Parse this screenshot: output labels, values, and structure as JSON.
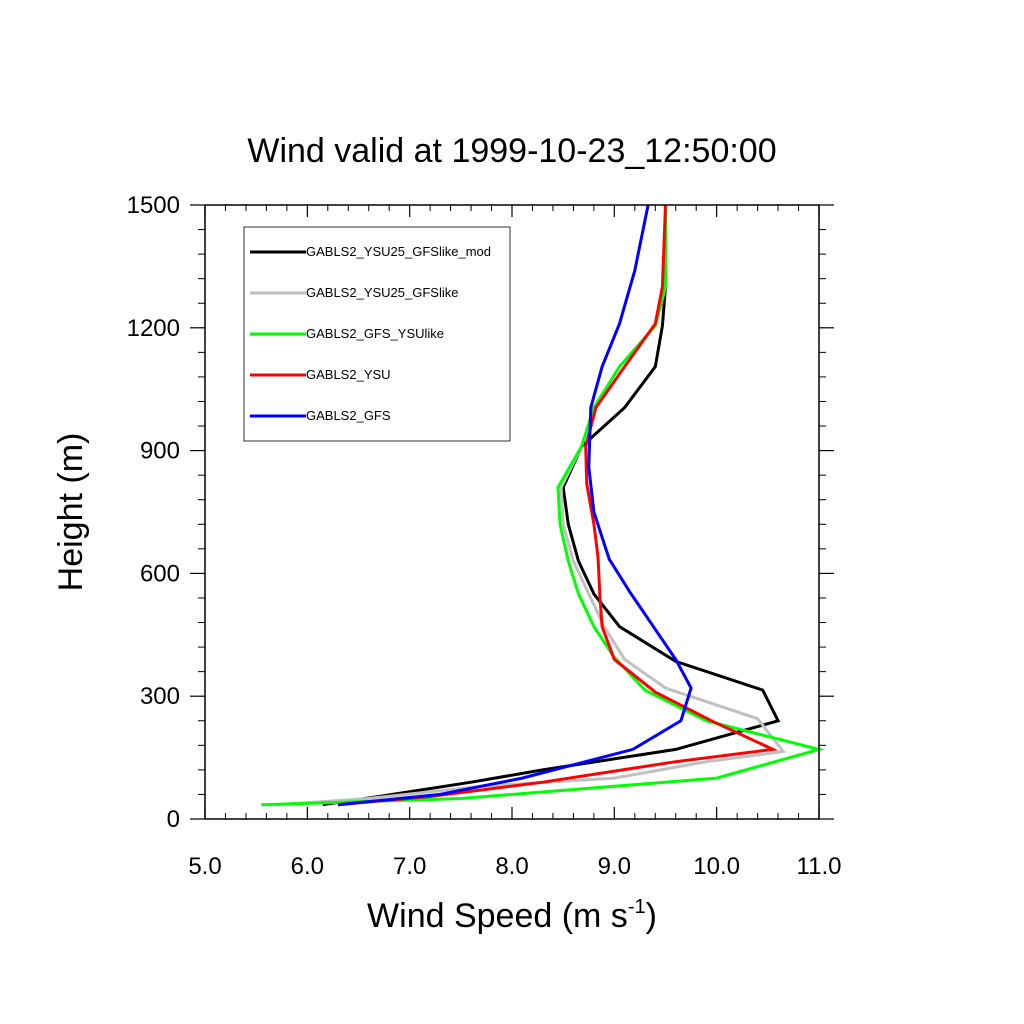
{
  "chart_data": {
    "type": "line",
    "title": "Wind valid at 1999-10-23_12:50:00",
    "xlabel": "Wind Speed (m s",
    "xlabel_sup": "-1",
    "xlabel_close": ")",
    "ylabel": "Height (m)",
    "xlim": [
      5.0,
      11.0
    ],
    "ylim": [
      0,
      1500
    ],
    "x_ticks": [
      5.0,
      6.0,
      7.0,
      8.0,
      9.0,
      10.0,
      11.0
    ],
    "x_tick_labels": [
      "5.0",
      "6.0",
      "7.0",
      "8.0",
      "9.0",
      "10.0",
      "11.0"
    ],
    "y_ticks": [
      0,
      300,
      600,
      900,
      1200,
      1500
    ],
    "y_tick_labels": [
      "0",
      "300",
      "600",
      "900",
      "1200",
      "1500"
    ],
    "legend_position": "top-left",
    "grid": false,
    "series": [
      {
        "name": "GABLS2_YSU25_GFSlike_mod",
        "color": "#000000",
        "points": [
          [
            6.15,
            35
          ],
          [
            6.7,
            55
          ],
          [
            7.6,
            90
          ],
          [
            8.3,
            120
          ],
          [
            9.6,
            170
          ],
          [
            10.6,
            240
          ],
          [
            10.45,
            315
          ],
          [
            9.6,
            385
          ],
          [
            9.05,
            470
          ],
          [
            8.8,
            550
          ],
          [
            8.65,
            630
          ],
          [
            8.55,
            720
          ],
          [
            8.5,
            810
          ],
          [
            8.68,
            910
          ],
          [
            9.1,
            1005
          ],
          [
            9.4,
            1105
          ],
          [
            9.47,
            1205
          ],
          [
            9.5,
            1300
          ],
          [
            9.5,
            1500
          ]
        ]
      },
      {
        "name": "GABLS2_YSU25_GFSlike",
        "color": "#c0c0c0",
        "points": [
          [
            5.7,
            35
          ],
          [
            6.6,
            50
          ],
          [
            7.7,
            80
          ],
          [
            9.0,
            100
          ],
          [
            9.9,
            140
          ],
          [
            10.65,
            165
          ],
          [
            10.4,
            245
          ],
          [
            9.5,
            320
          ],
          [
            9.1,
            390
          ],
          [
            8.9,
            470
          ],
          [
            8.75,
            550
          ],
          [
            8.6,
            630
          ],
          [
            8.5,
            720
          ],
          [
            8.48,
            810
          ],
          [
            8.68,
            910
          ],
          [
            8.8,
            1005
          ],
          [
            9.05,
            1105
          ],
          [
            9.4,
            1205
          ],
          [
            9.5,
            1300
          ],
          [
            9.5,
            1500
          ]
        ]
      },
      {
        "name": "GABLS2_GFS_YSUlike",
        "color": "#00ff00",
        "points": [
          [
            5.55,
            35
          ],
          [
            7.5,
            50
          ],
          [
            9.0,
            80
          ],
          [
            10.0,
            100
          ],
          [
            11.0,
            170
          ],
          [
            9.9,
            240
          ],
          [
            9.3,
            315
          ],
          [
            9.0,
            395
          ],
          [
            8.8,
            470
          ],
          [
            8.65,
            550
          ],
          [
            8.55,
            630
          ],
          [
            8.47,
            720
          ],
          [
            8.45,
            810
          ],
          [
            8.68,
            910
          ],
          [
            8.8,
            1005
          ],
          [
            9.05,
            1105
          ],
          [
            9.4,
            1205
          ],
          [
            9.5,
            1300
          ],
          [
            9.5,
            1500
          ]
        ]
      },
      {
        "name": "GABLS2_YSU",
        "color": "#ff0000",
        "points": [
          [
            6.3,
            35
          ],
          [
            7.2,
            55
          ],
          [
            8.3,
            90
          ],
          [
            9.6,
            140
          ],
          [
            10.55,
            170
          ],
          [
            9.95,
            240
          ],
          [
            9.4,
            310
          ],
          [
            9.0,
            390
          ],
          [
            8.88,
            470
          ],
          [
            8.86,
            540
          ],
          [
            8.84,
            640
          ],
          [
            8.8,
            720
          ],
          [
            8.73,
            820
          ],
          [
            8.72,
            910
          ],
          [
            8.82,
            1005
          ],
          [
            9.1,
            1105
          ],
          [
            9.4,
            1210
          ],
          [
            9.47,
            1300
          ],
          [
            9.5,
            1500
          ]
        ]
      },
      {
        "name": "GABLS2_GFS",
        "color": "#0000ff",
        "points": [
          [
            6.3,
            35
          ],
          [
            7.3,
            60
          ],
          [
            8.1,
            100
          ],
          [
            9.18,
            170
          ],
          [
            9.65,
            240
          ],
          [
            9.75,
            320
          ],
          [
            9.6,
            390
          ],
          [
            9.15,
            555
          ],
          [
            8.95,
            635
          ],
          [
            8.8,
            750
          ],
          [
            8.75,
            860
          ],
          [
            8.77,
            1005
          ],
          [
            8.88,
            1105
          ],
          [
            9.05,
            1210
          ],
          [
            9.2,
            1340
          ],
          [
            9.33,
            1500
          ]
        ]
      }
    ]
  }
}
